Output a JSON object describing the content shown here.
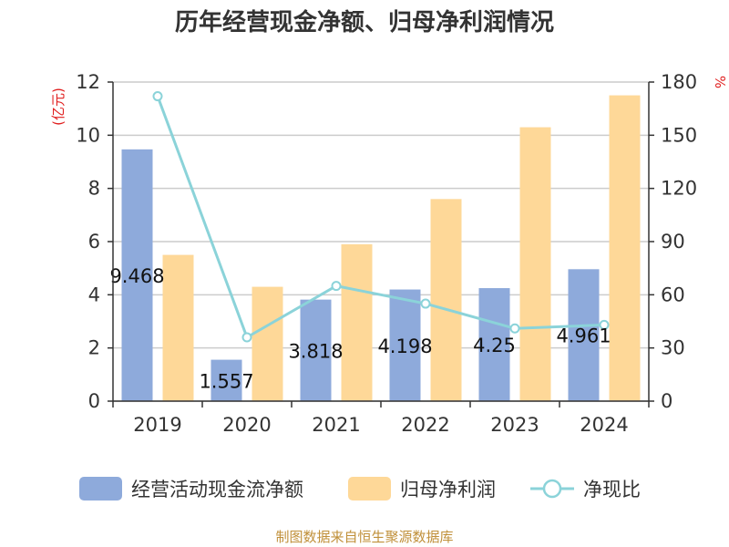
{
  "chart_data": {
    "type": "bar",
    "title": "历年经营现金净额、归母净利润情况",
    "categories": [
      "2019",
      "2020",
      "2021",
      "2022",
      "2023",
      "2024"
    ],
    "series": [
      {
        "name": "经营活动现金流净额",
        "type": "bar",
        "axis": "left",
        "color": "#8eaadb",
        "values": [
          9.468,
          1.557,
          3.818,
          4.198,
          4.25,
          4.961
        ],
        "labels": [
          "9.468",
          "1.557",
          "3.818",
          "4.198",
          "4.25",
          "4.961"
        ]
      },
      {
        "name": "归母净利润",
        "type": "bar",
        "axis": "left",
        "color": "#fed898",
        "values": [
          5.5,
          4.3,
          5.9,
          7.6,
          10.3,
          11.5
        ]
      },
      {
        "name": "净现比",
        "type": "line",
        "axis": "right",
        "color": "#8bd3d9",
        "values": [
          172,
          36,
          65,
          55,
          41,
          43
        ]
      }
    ],
    "y_left": {
      "label": "(亿元)",
      "ylim": [
        0,
        12
      ],
      "ticks": [
        "0",
        "2",
        "4",
        "6",
        "8",
        "10",
        "12"
      ]
    },
    "y_right": {
      "label": "%",
      "ylim": [
        0,
        180
      ],
      "ticks": [
        "0",
        "30",
        "60",
        "90",
        "120",
        "150",
        "180"
      ]
    },
    "grid": true,
    "legend": "bottom",
    "source": "制图数据来自恒生聚源数据库"
  }
}
